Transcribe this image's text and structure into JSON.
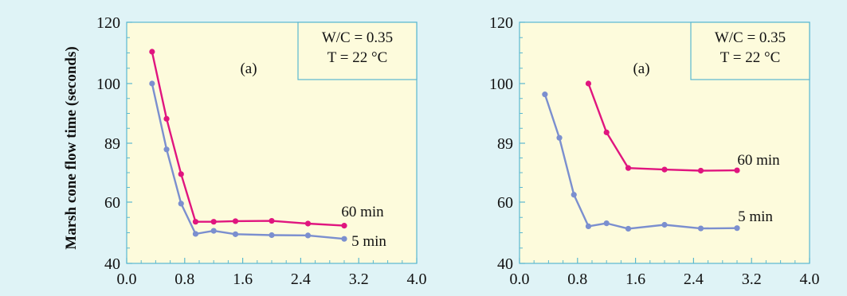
{
  "ylabel": "Marsh cone flow time (seconds)",
  "colors": {
    "background": "#dff3f6",
    "plot_area": "#fdfbdc",
    "axis": "#5ab8d0",
    "series_60": "#e0157f",
    "series_5": "#7b8fcf"
  },
  "chart_data": [
    {
      "type": "line",
      "panel_label": "(a)",
      "annotation": [
        "W/C = 0.35",
        "T = 22 °C"
      ],
      "xlim": [
        0.0,
        4.0
      ],
      "ylim": [
        40,
        120
      ],
      "xticks": [
        "0.0",
        "0.8",
        "1.6",
        "2.4",
        "3.2",
        "4.0"
      ],
      "yticks": [
        "40",
        "60",
        "89",
        "100",
        "120"
      ],
      "grid": false,
      "series": [
        {
          "name": "60 min",
          "x": [
            0.35,
            0.55,
            0.75,
            0.95,
            1.2,
            1.5,
            2.0,
            2.5,
            3.0
          ],
          "y": [
            110,
            93.5,
            69.5,
            53.5,
            53.5,
            53.7,
            53.8,
            52.9,
            52.2
          ]
        },
        {
          "name": "5 min",
          "x": [
            0.35,
            0.55,
            0.75,
            0.95,
            1.2,
            1.5,
            2.0,
            2.5,
            3.0
          ],
          "y": [
            100,
            85,
            59.5,
            49.5,
            50.5,
            49.4,
            49.1,
            49.0,
            47.9
          ]
        }
      ]
    },
    {
      "type": "line",
      "panel_label": "(a)",
      "annotation": [
        "W/C = 0.35",
        "T = 22 °C"
      ],
      "xlim": [
        0.0,
        4.0
      ],
      "ylim": [
        40,
        120
      ],
      "xticks": [
        "0.0",
        "0.8",
        "1.6",
        "2.4",
        "3.2",
        "4.0"
      ],
      "yticks": [
        "40",
        "60",
        "89",
        "100",
        "120"
      ],
      "grid": false,
      "series": [
        {
          "name": "60 min",
          "x": [
            0.95,
            1.2,
            1.5,
            2.0,
            2.5,
            3.0
          ],
          "y": [
            100,
            91,
            73,
            72,
            71.3,
            71.5
          ]
        },
        {
          "name": "5 min",
          "x": [
            0.35,
            0.55,
            0.75,
            0.95,
            1.2,
            1.5,
            2.0,
            2.5,
            3.0
          ],
          "y": [
            98,
            90,
            62.5,
            52,
            53,
            51.2,
            52.5,
            51.3,
            51.4
          ]
        }
      ]
    }
  ]
}
